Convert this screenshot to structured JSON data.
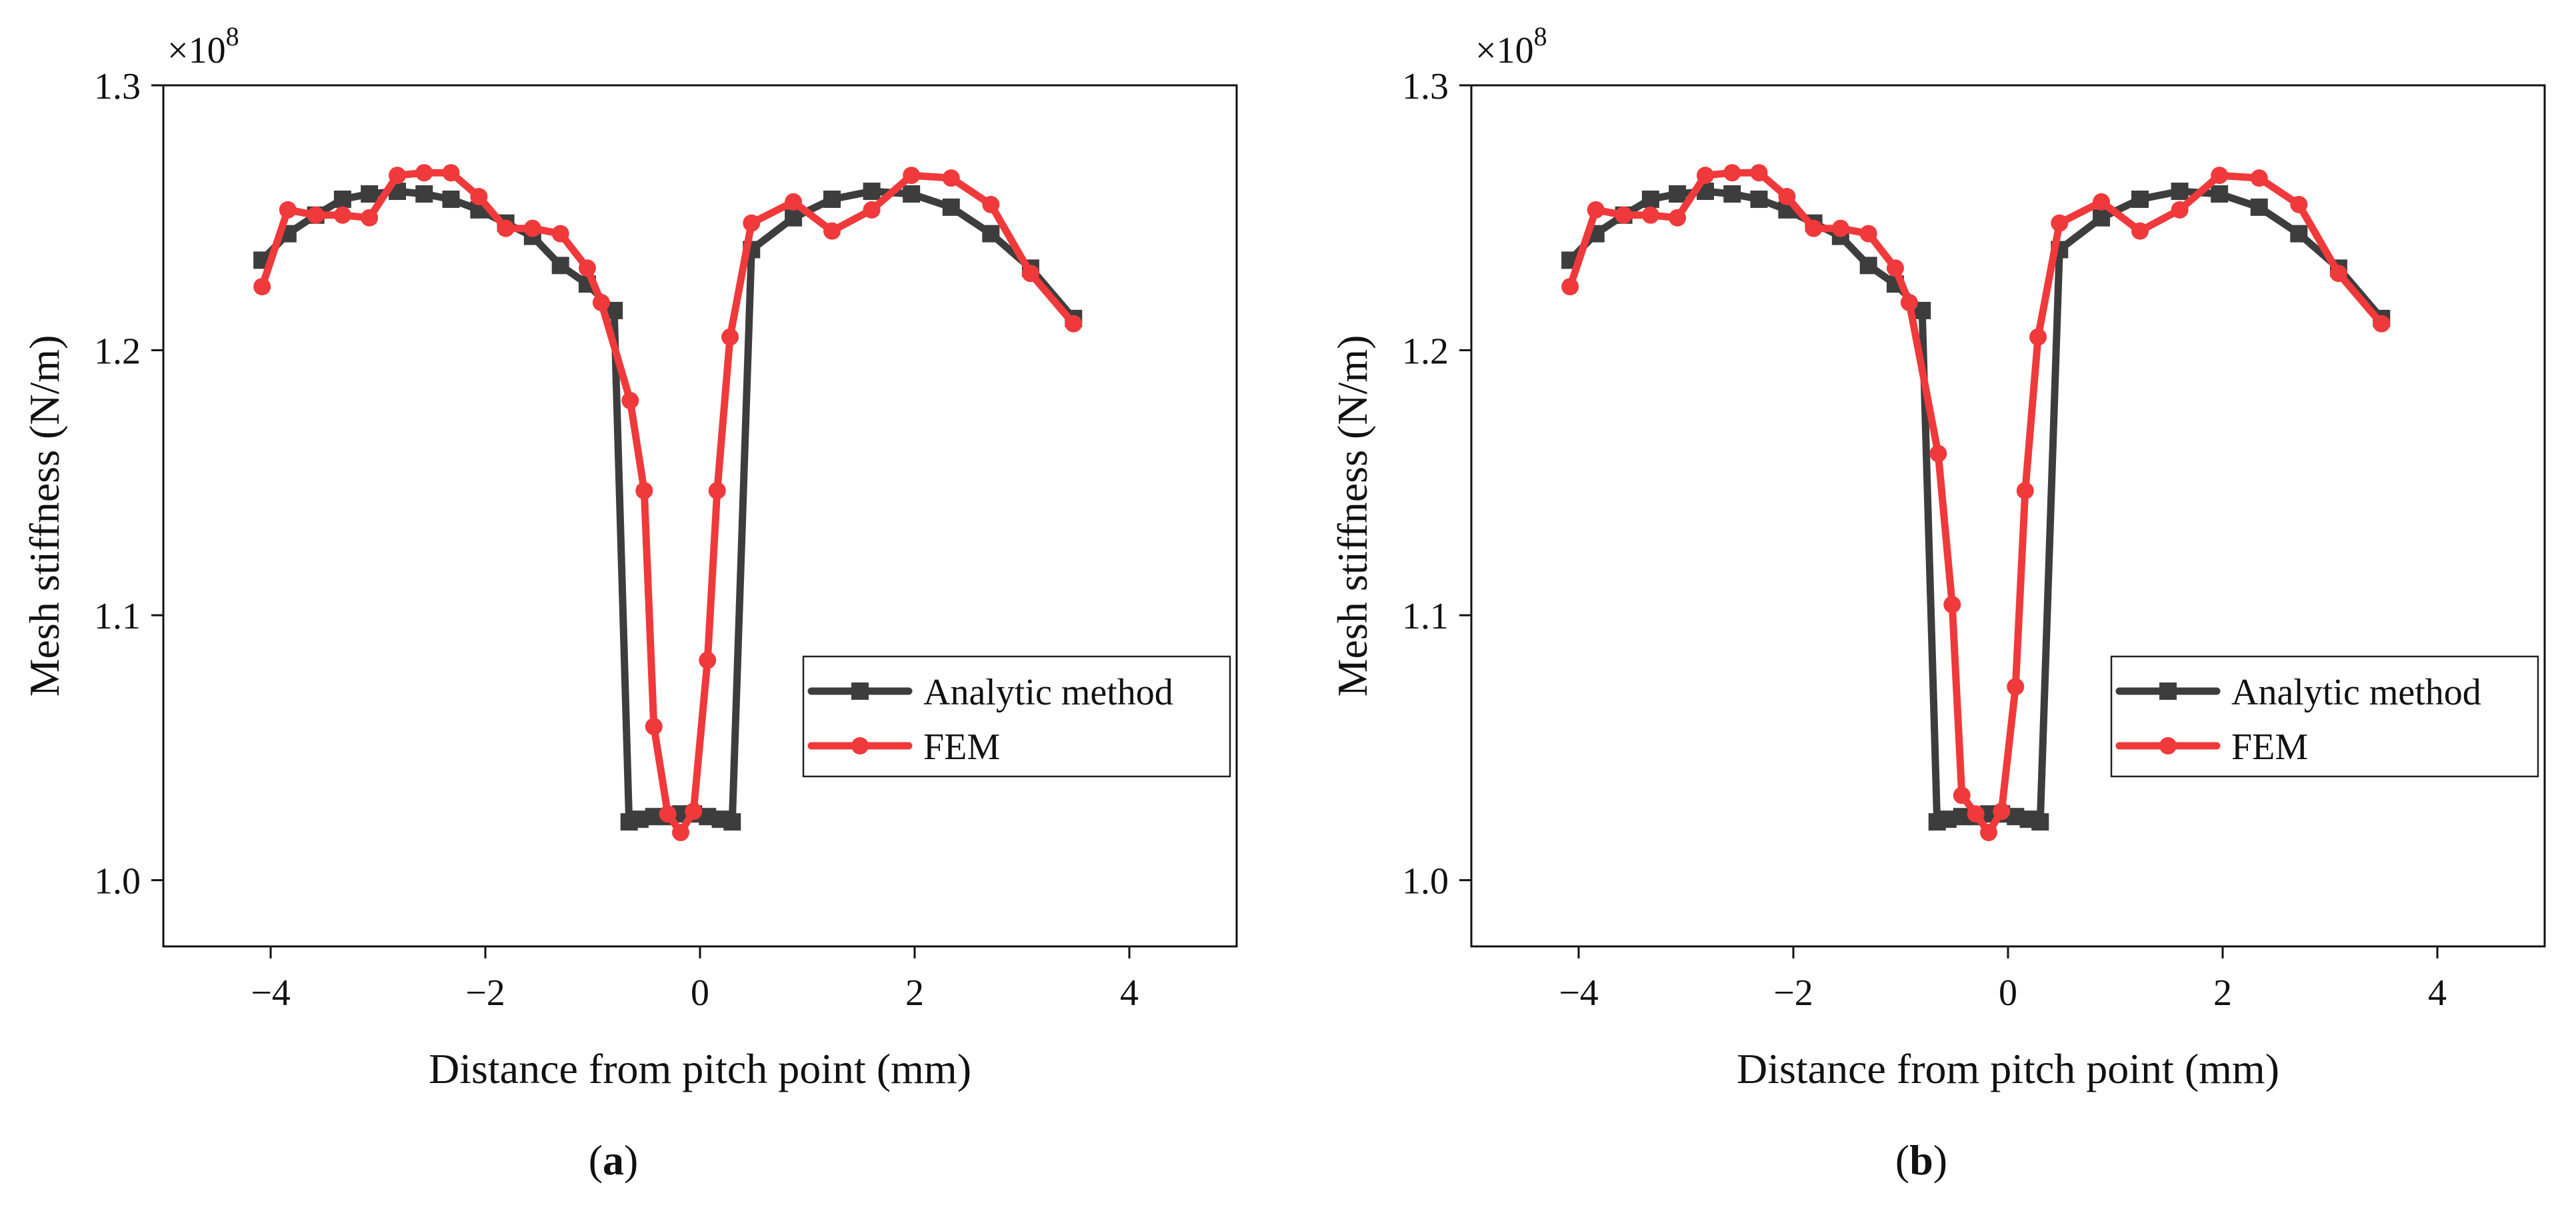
{
  "chart_data": [
    {
      "panel_label": "a",
      "type": "line",
      "xlabel": "Distance from pitch point (mm)",
      "ylabel": "Mesh stiffness (N/m)",
      "y_multiplier": "×10",
      "y_multiplier_exponent": "8",
      "xlim": [
        -5,
        5
      ],
      "ylim": [
        0.975,
        1.3
      ],
      "xticks": [
        -4,
        -2,
        0,
        2,
        4
      ],
      "xtick_labels": [
        "−4",
        "−2",
        "0",
        "2",
        "4"
      ],
      "yticks": [
        1.0,
        1.1,
        1.2,
        1.3
      ],
      "ytick_labels": [
        "1.0",
        "1.1",
        "1.2",
        "1.3"
      ],
      "legend_position": "lower-right",
      "series": [
        {
          "name": "Analytic method",
          "color": "#3d3d3d",
          "marker": "square",
          "x": [
            -4.08,
            -3.84,
            -3.58,
            -3.33,
            -3.08,
            -2.82,
            -2.57,
            -2.32,
            -2.06,
            -1.81,
            -1.56,
            -1.3,
            -1.05,
            -0.8,
            -0.66,
            -0.56,
            -0.43,
            -0.3,
            -0.18,
            -0.06,
            0.07,
            0.19,
            0.3,
            0.48,
            0.87,
            1.23,
            1.6,
            1.97,
            2.34,
            2.71,
            3.08,
            3.48
          ],
          "y": [
            1.234,
            1.244,
            1.251,
            1.257,
            1.259,
            1.26,
            1.259,
            1.257,
            1.253,
            1.248,
            1.243,
            1.232,
            1.225,
            1.215,
            1.022,
            1.023,
            1.024,
            1.024,
            1.025,
            1.025,
            1.024,
            1.023,
            1.022,
            1.238,
            1.25,
            1.257,
            1.26,
            1.259,
            1.254,
            1.244,
            1.231,
            1.212
          ]
        },
        {
          "name": "FEM",
          "color": "#f0393b",
          "marker": "circle",
          "x": [
            -4.08,
            -3.84,
            -3.58,
            -3.33,
            -3.08,
            -2.82,
            -2.57,
            -2.32,
            -2.06,
            -1.81,
            -1.56,
            -1.3,
            -1.05,
            -0.92,
            -0.65,
            -0.52,
            -0.43,
            -0.3,
            -0.18,
            -0.06,
            0.07,
            0.16,
            0.28,
            0.48,
            0.87,
            1.23,
            1.6,
            1.97,
            2.34,
            2.71,
            3.08,
            3.48
          ],
          "y": [
            1.224,
            1.253,
            1.251,
            1.251,
            1.25,
            1.266,
            1.267,
            1.267,
            1.258,
            1.246,
            1.246,
            1.244,
            1.231,
            1.218,
            1.181,
            1.147,
            1.058,
            1.025,
            1.018,
            1.026,
            1.083,
            1.147,
            1.205,
            1.248,
            1.256,
            1.245,
            1.253,
            1.266,
            1.265,
            1.255,
            1.229,
            1.21
          ]
        }
      ]
    },
    {
      "panel_label": "b",
      "type": "line",
      "xlabel": "Distance from pitch point (mm)",
      "ylabel": "Mesh stiffness (N/m)",
      "y_multiplier": "×10",
      "y_multiplier_exponent": "8",
      "xlim": [
        -5,
        5
      ],
      "ylim": [
        0.975,
        1.3
      ],
      "xticks": [
        -4,
        -2,
        0,
        2,
        4
      ],
      "xtick_labels": [
        "−4",
        "−2",
        "0",
        "2",
        "4"
      ],
      "yticks": [
        1.0,
        1.1,
        1.2,
        1.3
      ],
      "ytick_labels": [
        "1.0",
        "1.1",
        "1.2",
        "1.3"
      ],
      "legend_position": "lower-right",
      "series": [
        {
          "name": "Analytic method",
          "color": "#3d3d3d",
          "marker": "square",
          "x": [
            -4.08,
            -3.84,
            -3.58,
            -3.33,
            -3.08,
            -2.82,
            -2.57,
            -2.32,
            -2.06,
            -1.81,
            -1.56,
            -1.3,
            -1.05,
            -0.8,
            -0.66,
            -0.56,
            -0.43,
            -0.3,
            -0.18,
            -0.06,
            0.07,
            0.19,
            0.3,
            0.48,
            0.87,
            1.23,
            1.6,
            1.97,
            2.34,
            2.71,
            3.08,
            3.48
          ],
          "y": [
            1.234,
            1.244,
            1.251,
            1.257,
            1.259,
            1.26,
            1.259,
            1.257,
            1.253,
            1.248,
            1.243,
            1.232,
            1.225,
            1.215,
            1.022,
            1.023,
            1.024,
            1.024,
            1.025,
            1.025,
            1.024,
            1.023,
            1.022,
            1.238,
            1.25,
            1.257,
            1.26,
            1.259,
            1.254,
            1.244,
            1.231,
            1.212
          ]
        },
        {
          "name": "FEM",
          "color": "#f0393b",
          "marker": "circle",
          "x": [
            -4.08,
            -3.84,
            -3.58,
            -3.33,
            -3.08,
            -2.82,
            -2.57,
            -2.32,
            -2.06,
            -1.81,
            -1.56,
            -1.3,
            -1.05,
            -0.92,
            -0.65,
            -0.52,
            -0.43,
            -0.3,
            -0.18,
            -0.06,
            0.07,
            0.16,
            0.28,
            0.48,
            0.87,
            1.23,
            1.6,
            1.97,
            2.34,
            2.71,
            3.08,
            3.48
          ],
          "y": [
            1.224,
            1.253,
            1.251,
            1.251,
            1.25,
            1.266,
            1.267,
            1.267,
            1.258,
            1.246,
            1.246,
            1.244,
            1.231,
            1.218,
            1.161,
            1.104,
            1.032,
            1.025,
            1.018,
            1.026,
            1.073,
            1.147,
            1.205,
            1.248,
            1.256,
            1.245,
            1.253,
            1.266,
            1.265,
            1.255,
            1.229,
            1.21
          ]
        }
      ]
    }
  ]
}
